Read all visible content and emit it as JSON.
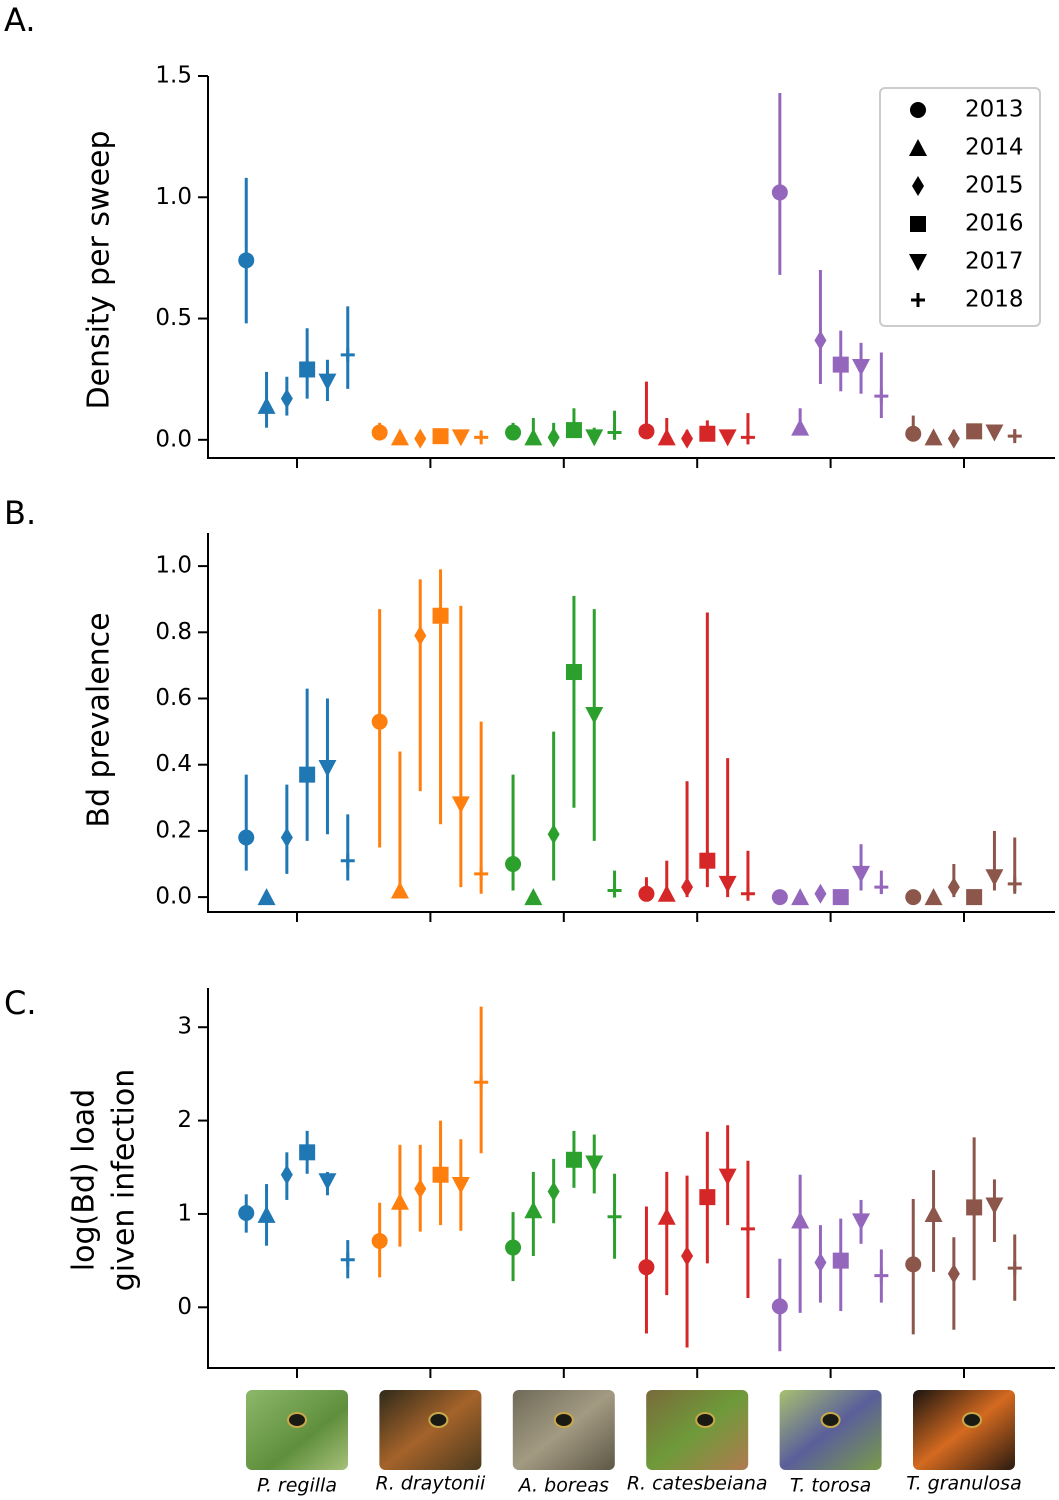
{
  "chart_data": {
    "type": "errorbar",
    "categories": [
      "P. regilla",
      "R. draytonii",
      "A. boreas",
      "R. catesbeiana",
      "T. torosa",
      "T. granulosa"
    ],
    "colors": [
      "#1f77b4",
      "#ff7f0e",
      "#2ca02c",
      "#d62728",
      "#9467bd",
      "#8c564b"
    ],
    "series": [
      {
        "name": "2013",
        "marker": "circle"
      },
      {
        "name": "2014",
        "marker": "triangle-up"
      },
      {
        "name": "2015",
        "marker": "diamond"
      },
      {
        "name": "2016",
        "marker": "square"
      },
      {
        "name": "2017",
        "marker": "triangle-down"
      },
      {
        "name": "2018",
        "marker": "plus"
      }
    ],
    "panels": [
      {
        "label": "A.",
        "ylabel": [
          "Density per sweep"
        ],
        "legend": "upper right",
        "ylim": [
          -0.075,
          1.5
        ],
        "yticks": [
          {
            "value": 0,
            "label": "0.0"
          },
          0.5,
          {
            "value": 1,
            "label": "1.0"
          },
          1.5
        ],
        "series": [
          {
            "values": [
              0.74,
              0.03,
              0.03,
              0.035,
              1.02,
              0.025
            ],
            "lower": [
              0.48,
              0.01,
              0.01,
              0.01,
              0.68,
              0.01
            ],
            "upper": [
              1.08,
              0.07,
              0.07,
              0.24,
              1.43,
              0.1
            ]
          },
          {
            "values": [
              0.14,
              0.01,
              0.01,
              0.01,
              0.05,
              0.01
            ],
            "lower": [
              0.05,
              0,
              0,
              0,
              0.02,
              0
            ],
            "upper": [
              0.28,
              0.03,
              0.09,
              0.09,
              0.13,
              0.03
            ]
          },
          {
            "values": [
              0.17,
              0.005,
              0.01,
              0.005,
              0.41,
              0.005
            ],
            "lower": [
              0.1,
              0,
              0,
              0,
              0.23,
              0
            ],
            "upper": [
              0.26,
              0.02,
              0.07,
              0.04,
              0.7,
              0.04
            ]
          },
          {
            "values": [
              0.29,
              0.015,
              0.04,
              0.025,
              0.31,
              0.035
            ],
            "lower": [
              0.17,
              0,
              0.01,
              0.01,
              0.2,
              0.01
            ],
            "upper": [
              0.46,
              0.04,
              0.13,
              0.08,
              0.45,
              0.06
            ]
          },
          {
            "values": [
              0.24,
              0.01,
              0.01,
              0.01,
              0.3,
              0.03
            ],
            "lower": [
              0.16,
              0,
              0,
              0,
              0.19,
              0.01
            ],
            "upper": [
              0.33,
              0.03,
              0.05,
              0.04,
              0.4,
              0.06
            ]
          },
          {
            "values": [
              0.35,
              0.01,
              0.03,
              0.01,
              0.18,
              0.015
            ],
            "lower": [
              0.21,
              0,
              0,
              0,
              0.09,
              0
            ],
            "upper": [
              0.55,
              0.03,
              0.12,
              0.11,
              0.36,
              0.04
            ]
          }
        ]
      },
      {
        "label": "B.",
        "ylabel": [
          "Bd prevalence"
        ],
        "ylim": [
          -0.045,
          1.1
        ],
        "yticks": [
          {
            "value": 0,
            "label": "0.0"
          },
          0.2,
          0.4,
          0.6,
          0.8,
          {
            "value": 1,
            "label": "1.0"
          }
        ],
        "series": [
          {
            "values": [
              0.18,
              0.53,
              0.1,
              0.01,
              0.0,
              0.0
            ],
            "lower": [
              0.08,
              0.15,
              0.02,
              0,
              0,
              null
            ],
            "upper": [
              0.37,
              0.87,
              0.37,
              0.06,
              0.02,
              null
            ]
          },
          {
            "values": [
              0.0,
              0.02,
              0.0,
              0.01,
              0.0,
              0.0
            ],
            "lower": [
              null,
              0,
              null,
              0,
              null,
              null
            ],
            "upper": [
              null,
              0.44,
              null,
              0.11,
              null,
              null
            ]
          },
          {
            "values": [
              0.18,
              0.79,
              0.19,
              0.03,
              0.01,
              0.03
            ],
            "lower": [
              0.07,
              0.32,
              0.05,
              0,
              0,
              0
            ],
            "upper": [
              0.34,
              0.96,
              0.5,
              0.35,
              0.03,
              0.1
            ]
          },
          {
            "values": [
              0.37,
              0.85,
              0.68,
              0.11,
              0.0,
              0.0
            ],
            "lower": [
              0.17,
              0.22,
              0.27,
              0.03,
              null,
              null
            ],
            "upper": [
              0.63,
              0.99,
              0.91,
              0.86,
              null,
              null
            ]
          },
          {
            "values": [
              0.39,
              0.28,
              0.55,
              0.04,
              0.07,
              0.06
            ],
            "lower": [
              0.19,
              0.03,
              0.17,
              0,
              0.02,
              0.02
            ],
            "upper": [
              0.6,
              0.88,
              0.87,
              0.42,
              0.16,
              0.2
            ]
          },
          {
            "values": [
              0.11,
              0.07,
              0.02,
              0.01,
              0.03,
              0.04
            ],
            "lower": [
              0.05,
              0.01,
              0,
              0,
              0.01,
              0.01
            ],
            "upper": [
              0.25,
              0.53,
              0.08,
              0.14,
              0.08,
              0.18
            ]
          }
        ]
      },
      {
        "label": "C.",
        "ylabel": [
          "log(Bd) load",
          "given infection"
        ],
        "ylim": [
          -0.65,
          3.42
        ],
        "yticks": [
          0,
          1,
          2,
          3
        ],
        "series": [
          {
            "values": [
              1.01,
              0.71,
              0.64,
              0.43,
              0.01,
              0.46
            ],
            "lower": [
              0.8,
              0.32,
              0.28,
              -0.28,
              -0.47,
              -0.29
            ],
            "upper": [
              1.21,
              1.12,
              1.02,
              1.08,
              0.52,
              1.16
            ]
          },
          {
            "values": [
              0.99,
              1.13,
              1.04,
              0.97,
              0.93,
              1.0
            ],
            "lower": [
              0.66,
              0.65,
              0.55,
              0.13,
              -0.06,
              0.38
            ],
            "upper": [
              1.32,
              1.74,
              1.45,
              1.45,
              1.42,
              1.47
            ]
          },
          {
            "values": [
              1.42,
              1.27,
              1.24,
              0.55,
              0.48,
              0.36
            ],
            "lower": [
              1.15,
              0.81,
              0.9,
              -0.43,
              0.05,
              -0.24
            ],
            "upper": [
              1.66,
              1.74,
              1.59,
              1.41,
              0.88,
              0.75
            ]
          },
          {
            "values": [
              1.66,
              1.42,
              1.58,
              1.18,
              0.5,
              1.07
            ],
            "lower": [
              1.43,
              0.88,
              1.28,
              0.47,
              -0.04,
              0.29
            ],
            "upper": [
              1.89,
              2.0,
              1.89,
              1.88,
              0.95,
              1.82
            ]
          },
          {
            "values": [
              1.35,
              1.31,
              1.54,
              1.4,
              0.92,
              1.09
            ],
            "lower": [
              1.2,
              0.82,
              1.22,
              0.88,
              0.68,
              0.7
            ],
            "upper": [
              1.45,
              1.8,
              1.85,
              1.95,
              1.15,
              1.37
            ]
          },
          {
            "values": [
              0.51,
              2.41,
              0.97,
              0.84,
              0.34,
              0.42
            ],
            "lower": [
              0.31,
              1.65,
              0.52,
              0.1,
              0.05,
              0.07
            ],
            "upper": [
              0.72,
              3.22,
              1.43,
              1.57,
              0.62,
              0.78
            ]
          }
        ]
      }
    ]
  }
}
